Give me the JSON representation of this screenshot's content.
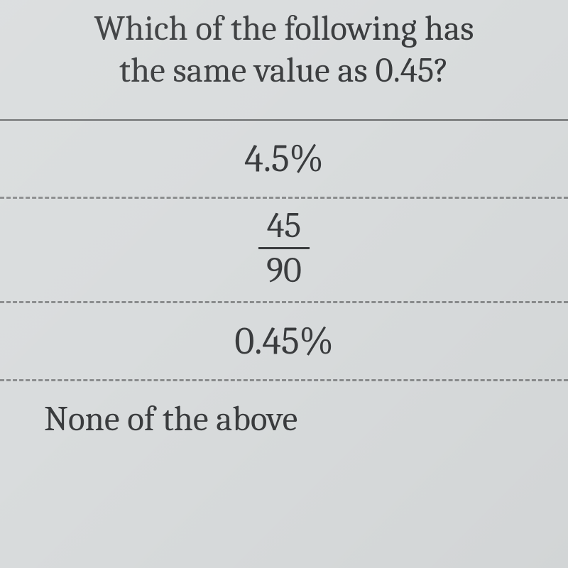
{
  "question": {
    "line1": "Which of the following has",
    "line2": "the same value as 0.45?"
  },
  "answers": {
    "a": "4.5%",
    "b": {
      "numerator": "45",
      "denominator": "90"
    },
    "c": "0.45%",
    "d": "None of the above"
  },
  "style": {
    "background": "#d9dcdd",
    "text_color": "#3a3c3e",
    "solid_divider_color": "#6a6c6d",
    "dashed_divider_color": "#8a8c8d",
    "question_fontsize": 49,
    "answer_fontsize": 54,
    "fraction_fontsize": 50,
    "font_family": "Cambria/Georgia serif"
  }
}
